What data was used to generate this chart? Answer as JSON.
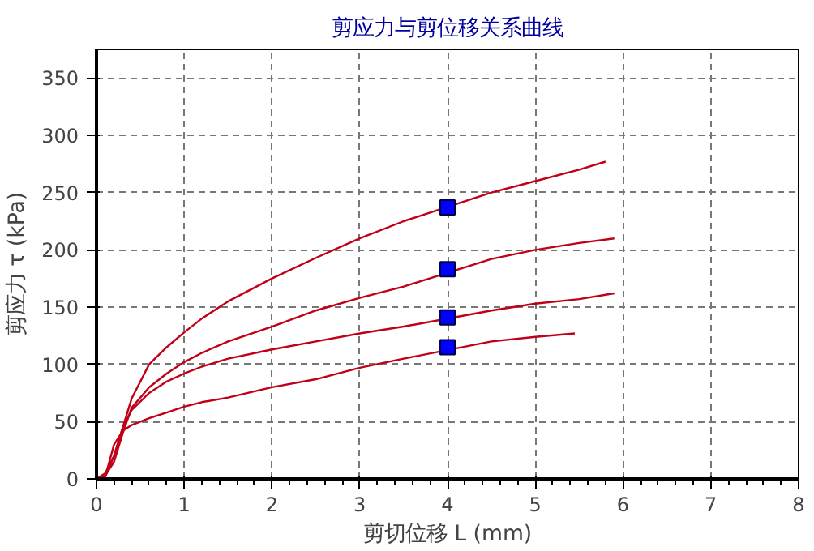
{
  "chart_data": {
    "type": "line",
    "title": "剪应力与剪位移关系曲线",
    "xlabel": "剪切位移 L (mm)",
    "ylabel": "剪应力 τ (kPa)",
    "xlim": [
      0,
      8
    ],
    "xticks": [
      0,
      1,
      2,
      3,
      4,
      5,
      6,
      7,
      8
    ],
    "ylim": [
      0,
      375
    ],
    "yticks": [
      0,
      50,
      100,
      150,
      200,
      250,
      300,
      350
    ],
    "grid": true,
    "series": [
      {
        "color": "#c00018",
        "x": [
          0,
          0.1,
          0.2,
          0.3,
          0.4,
          0.6,
          0.8,
          1,
          1.2,
          1.5,
          2,
          2.5,
          3,
          3.5,
          4.5,
          5,
          5.5,
          5.8
        ],
        "values": [
          0,
          5,
          20,
          45,
          70,
          100,
          115,
          128,
          140,
          155,
          175,
          193,
          210,
          225,
          250,
          260,
          270,
          277
        ]
      },
      {
        "color": "#c00018",
        "x": [
          0,
          0.1,
          0.2,
          0.3,
          0.4,
          0.6,
          0.8,
          1,
          1.2,
          1.5,
          2,
          2.5,
          3,
          3.5,
          4.5,
          5,
          5.5,
          5.9
        ],
        "values": [
          0,
          3,
          15,
          40,
          62,
          80,
          92,
          102,
          110,
          120,
          133,
          147,
          158,
          168,
          192,
          200,
          206,
          210
        ]
      },
      {
        "color": "#c00018",
        "x": [
          0,
          0.1,
          0.2,
          0.3,
          0.4,
          0.6,
          0.8,
          1,
          1.2,
          1.5,
          2,
          2.5,
          3,
          3.5,
          4.5,
          5,
          5.5,
          5.9
        ],
        "values": [
          0,
          2,
          20,
          45,
          60,
          75,
          85,
          92,
          98,
          105,
          113,
          120,
          127,
          133,
          147,
          153,
          157,
          162
        ]
      },
      {
        "color": "#c00018",
        "x": [
          0,
          0.1,
          0.2,
          0.3,
          0.4,
          0.6,
          0.8,
          1,
          1.2,
          1.5,
          2,
          2.5,
          3,
          3.5,
          4.5,
          5,
          5.45
        ],
        "values": [
          0,
          2,
          30,
          42,
          47,
          53,
          58,
          63,
          67,
          71,
          80,
          87,
          97,
          105,
          120,
          124,
          127
        ]
      },
      {
        "type": "scatter",
        "marker": "square",
        "color": "#0000ff",
        "x": [
          4,
          4,
          4,
          4
        ],
        "values": [
          237,
          183,
          141,
          115
        ]
      }
    ]
  }
}
